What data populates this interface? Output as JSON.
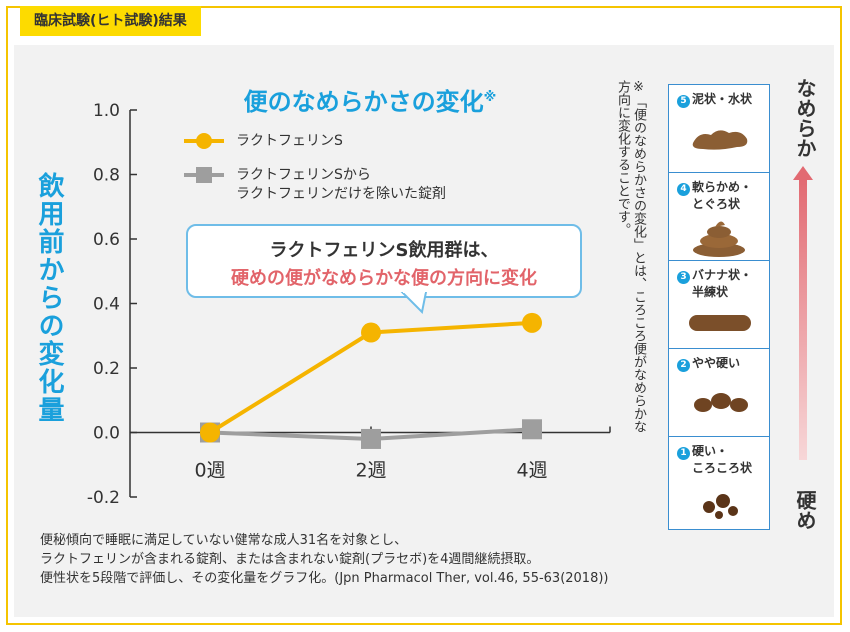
{
  "header": {
    "tab_label": "臨床試験(ヒト試験)結果"
  },
  "chart_data": {
    "type": "line",
    "title": "便のなめらかさの変化",
    "title_mark": "※",
    "ylabel": "飲用前からの変化量",
    "xlabel": "",
    "categories": [
      "0週",
      "2週",
      "4週"
    ],
    "ylim": [
      -0.2,
      1.0
    ],
    "yticks": [
      "1.0",
      "0.8",
      "0.6",
      "0.4",
      "0.2",
      "0.0",
      "-0.2"
    ],
    "ytick_values": [
      1.0,
      0.8,
      0.6,
      0.4,
      0.2,
      0.0,
      -0.2
    ],
    "series": [
      {
        "name": "ラクトフェリンS",
        "values": [
          0.0,
          0.31,
          0.34
        ],
        "color": "#f5b400",
        "marker": "circle"
      },
      {
        "name": "ラクトフェリンSから\nラクトフェリンだけを除いた錠剤",
        "values": [
          0.0,
          -0.02,
          0.01
        ],
        "color": "#9e9e9e",
        "marker": "square"
      }
    ]
  },
  "legend": {
    "series1": "ラクトフェリンS",
    "series2_line1": "ラクトフェリンSから",
    "series2_line2": "ラクトフェリンだけを除いた錠剤"
  },
  "callout": {
    "line1": "ラクトフェリンS飲用群は、",
    "line2": "硬めの便がなめらかな便の方向に変化"
  },
  "note": "※「便のなめらかさの変化」とは、ころころ便がなめらかな方向に変化することです。",
  "scale": {
    "top_label": "なめらか",
    "bottom_label": "硬め",
    "items": [
      {
        "num": "5",
        "label": "泥状・水状"
      },
      {
        "num": "4",
        "label": "軟らかめ・",
        "label2": "とぐろ状"
      },
      {
        "num": "3",
        "label": "バナナ状・",
        "label2": "半練状"
      },
      {
        "num": "2",
        "label": "やや硬い"
      },
      {
        "num": "1",
        "label": "硬い・",
        "label2": "ころころ状"
      }
    ]
  },
  "footnote": {
    "line1": "便秘傾向で睡眠に満足していない健常な成人31名を対象とし、",
    "line2": "ラクトフェリンが含まれる錠剤、または含まれない錠剤(プラセボ)を4週間継続摂取。",
    "line3": "便性状を5段階で評価し、その変化量をグラフ化。(Jpn Pharmacol Ther, vol.46, 55-63(2018))"
  },
  "colors": {
    "accent": "#1aa0dc",
    "tab": "#fddb00",
    "series1": "#f5b400",
    "series2": "#9e9e9e",
    "highlight": "#e2646a"
  }
}
